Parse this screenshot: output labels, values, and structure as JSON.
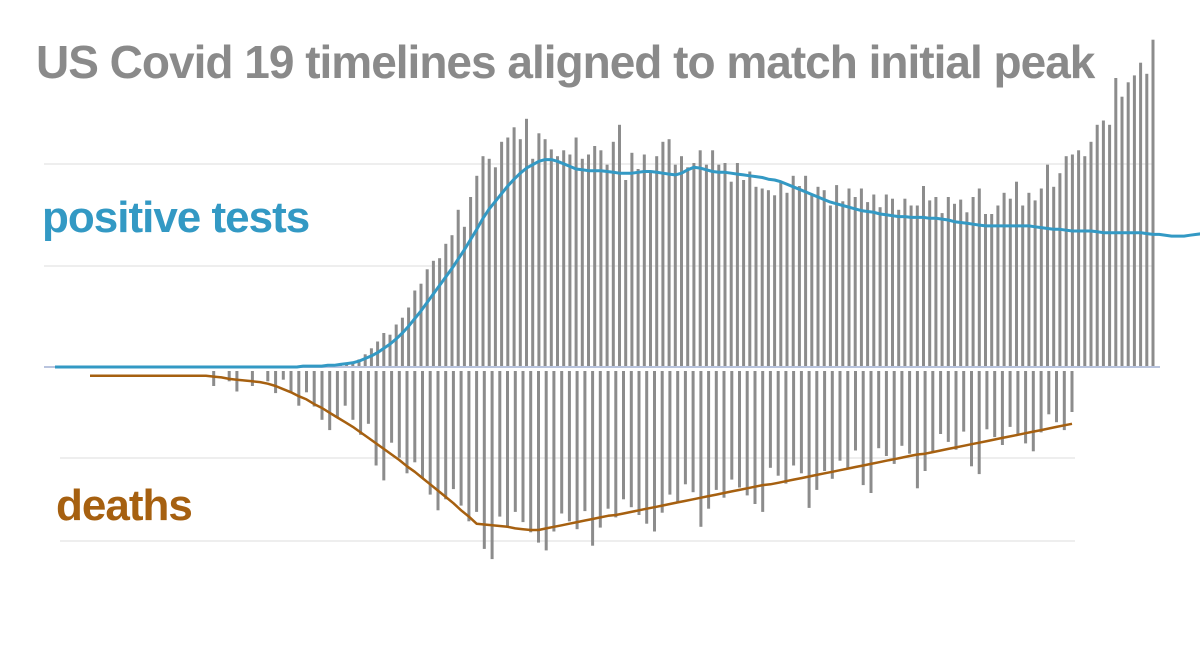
{
  "chart_data": {
    "type": "bar",
    "title": "US Covid 19 timelines aligned to match initial peak",
    "xlabel": "",
    "ylabel": "",
    "grid": true,
    "legend": "inline labels (left)",
    "colors": {
      "title": "#8a8a8a",
      "bars": "#8c8c8c",
      "tests_line": "#3399c4",
      "deaths_line": "#a66010",
      "grid": "#dcdcdc",
      "baseline": "#b9c4de"
    },
    "series": [
      {
        "name": "positive tests",
        "kind": "bars+line",
        "direction": "up",
        "ylim": [
          0,
          300
        ],
        "bars": [
          0,
          0,
          0,
          0,
          0,
          0,
          0,
          0,
          0,
          0,
          0,
          0,
          0,
          0,
          0,
          0,
          0,
          0,
          0,
          0,
          0,
          0,
          0,
          0,
          0,
          0,
          0,
          0,
          0,
          0,
          0,
          0,
          0,
          0,
          0,
          0,
          0,
          0,
          0,
          0,
          1,
          1,
          1,
          2,
          2,
          3,
          3,
          4,
          6,
          9,
          15,
          22,
          30,
          40,
          38,
          50,
          58,
          70,
          90,
          98,
          115,
          125,
          128,
          145,
          155,
          185,
          165,
          200,
          225,
          248,
          245,
          235,
          265,
          270,
          282,
          268,
          292,
          245,
          275,
          268,
          256,
          248,
          255,
          250,
          270,
          245,
          250,
          260,
          255,
          238,
          265,
          285,
          220,
          252,
          233,
          250,
          230,
          248,
          265,
          268,
          238,
          248,
          235,
          240,
          255,
          238,
          255,
          238,
          240,
          218,
          240,
          220,
          230,
          212,
          210,
          208,
          202,
          218,
          205,
          225,
          213,
          225,
          202,
          212,
          208,
          190,
          214,
          195,
          210,
          200,
          210,
          194,
          203,
          188,
          203,
          198,
          185,
          198,
          190,
          190,
          213,
          196,
          200,
          181,
          200,
          192,
          197,
          182,
          200,
          210,
          180,
          180,
          190,
          205,
          198,
          218,
          190,
          205,
          196,
          210,
          238,
          212,
          228,
          248,
          250,
          255,
          248,
          265,
          285,
          290,
          285,
          340,
          318,
          335,
          343,
          358,
          345,
          385
        ],
        "line": [
          0,
          0,
          0,
          0,
          0,
          0,
          0,
          0,
          0,
          0,
          0,
          0,
          0,
          0,
          0,
          0,
          0,
          0,
          0,
          0,
          0,
          0,
          0,
          0,
          0,
          0,
          0,
          0,
          0,
          0,
          0,
          0,
          0,
          0,
          0,
          0,
          0,
          0,
          0,
          0,
          1,
          1,
          1,
          1,
          2,
          2,
          3,
          4,
          5,
          7,
          10,
          13,
          17,
          22,
          27,
          33,
          40,
          48,
          57,
          66,
          76,
          86,
          96,
          106,
          116,
          127,
          138,
          150,
          162,
          175,
          186,
          195,
          204,
          213,
          221,
          228,
          234,
          238,
          242,
          244,
          244,
          242,
          239,
          236,
          233,
          232,
          231,
          231,
          231,
          230,
          229,
          228,
          228,
          228,
          229,
          230,
          230,
          229,
          228,
          227,
          226,
          228,
          232,
          235,
          234,
          232,
          230,
          229,
          229,
          228,
          227,
          226,
          225,
          224,
          223,
          221,
          220,
          218,
          215,
          212,
          209,
          206,
          203,
          200,
          197,
          194,
          192,
          190,
          188,
          186,
          184,
          183,
          182,
          180,
          179,
          178,
          177,
          177,
          176,
          176,
          176,
          175,
          175,
          174,
          173,
          171,
          170,
          169,
          168,
          167,
          166,
          166,
          166,
          166,
          166,
          166,
          166,
          166,
          165,
          164,
          163,
          162,
          162,
          161,
          160,
          160,
          160,
          160,
          159,
          158,
          158,
          158,
          158,
          158,
          158,
          158,
          157,
          156,
          156,
          155,
          154,
          154,
          154,
          155,
          156,
          157,
          158,
          160,
          162,
          166
        ]
      },
      {
        "name": "deaths",
        "kind": "bars+line",
        "direction": "down",
        "ylim": [
          0,
          300
        ],
        "bars": [],
        "line": []
      }
    ]
  },
  "labels": {
    "tests": "positive tests",
    "deaths": "deaths"
  }
}
